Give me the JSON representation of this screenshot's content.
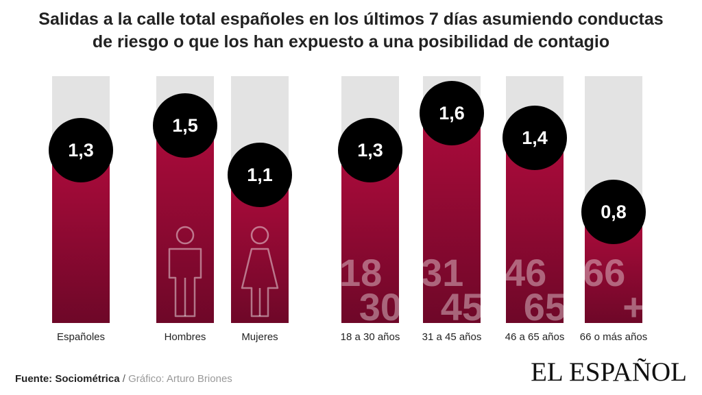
{
  "title": {
    "line1": "Salidas a la calle total españoles en los últimos 7 días asumiendo conductas",
    "line2": "de riesgo o que los han expuesto a una posibilidad de contagio"
  },
  "chart_data": {
    "type": "bar",
    "categories": [
      "Españoles",
      "Hombres",
      "Mujeres",
      "18 a 30 años",
      "31 a 45 años",
      "46 a 65 años",
      "66 o más años"
    ],
    "values": [
      1.3,
      1.5,
      1.1,
      1.3,
      1.6,
      1.4,
      0.8
    ],
    "value_labels": [
      "1,3",
      "1,5",
      "1,1",
      "1,3",
      "1,6",
      "1,4",
      "0,8"
    ],
    "bar_overlays": [
      "",
      "man-icon",
      "woman-icon",
      "18 30",
      "31 45",
      "46 65",
      "66 +"
    ],
    "ylim": [
      0,
      2
    ],
    "colors": {
      "bar": "#a80b3a",
      "bar_dark": "#6e0728",
      "track": "#e3e3e3",
      "bubble": "#000000",
      "bubble_text": "#ffffff"
    }
  },
  "footer": {
    "source_label": "Fuente: Sociométrica",
    "separator": "/",
    "credit": "Gráfico: Arturo Briones",
    "logo": "EL ESPAÑOL"
  }
}
